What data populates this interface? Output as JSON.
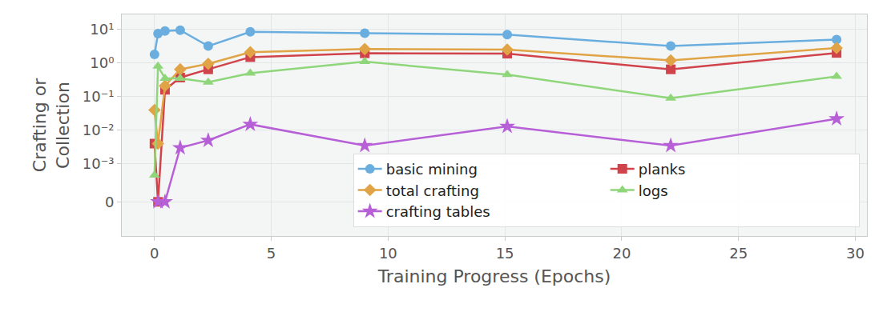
{
  "chart_data": {
    "type": "line",
    "x_label": "Training Progress (Epochs)",
    "y_label": "Crafting or\nCollection",
    "log": "y",
    "grid": true,
    "legend": "lower right",
    "x": [
      0,
      0.15,
      0.45,
      1.1,
      2.3,
      4.1,
      9.0,
      15.1,
      22.1,
      29.2
    ],
    "xlim": [
      -1.4,
      30.5
    ],
    "xticks": [
      0,
      5,
      10,
      15,
      20,
      25,
      30
    ],
    "ylim": [
      -0.0009,
      28
    ],
    "yticks": [
      0,
      {
        "value": 0.001,
        "label": "10⁻³"
      },
      {
        "value": 0.01,
        "label": "10⁻²"
      },
      {
        "value": 0.1,
        "label": "10⁻¹"
      },
      {
        "value": 1,
        "label": "10⁰"
      },
      {
        "value": 10,
        "label": "10¹"
      }
    ],
    "series": [
      {
        "name": "basic mining",
        "color": "#6aaee0",
        "marker": "circle",
        "values": [
          1.8,
          7.5,
          9,
          9.5,
          3.2,
          8.5,
          7.7,
          7,
          3.2,
          5
        ]
      },
      {
        "name": "planks",
        "color": "#d0434a",
        "marker": "square",
        "values": [
          0.004,
          0,
          0.16,
          0.37,
          0.65,
          1.5,
          1.95,
          1.9,
          0.65,
          2.0
        ]
      },
      {
        "name": "total crafting",
        "color": "#e0a446",
        "marker": "diamond",
        "values": [
          0.04,
          0.004,
          0.21,
          0.65,
          0.95,
          2.1,
          2.6,
          2.5,
          1.2,
          2.8
        ]
      },
      {
        "name": "logs",
        "color": "#8fd67a",
        "marker": "triangle-up",
        "values": [
          0.0007,
          0.8,
          0.35,
          0.35,
          0.27,
          0.5,
          1.1,
          0.45,
          0.09,
          0.4
        ]
      },
      {
        "name": "crafting tables",
        "color": "#b65fd6",
        "marker": "star",
        "values": [
          null,
          0,
          0,
          0.003,
          0.005,
          0.015,
          0.0035,
          0.013,
          0.0035,
          0.022
        ]
      }
    ]
  }
}
